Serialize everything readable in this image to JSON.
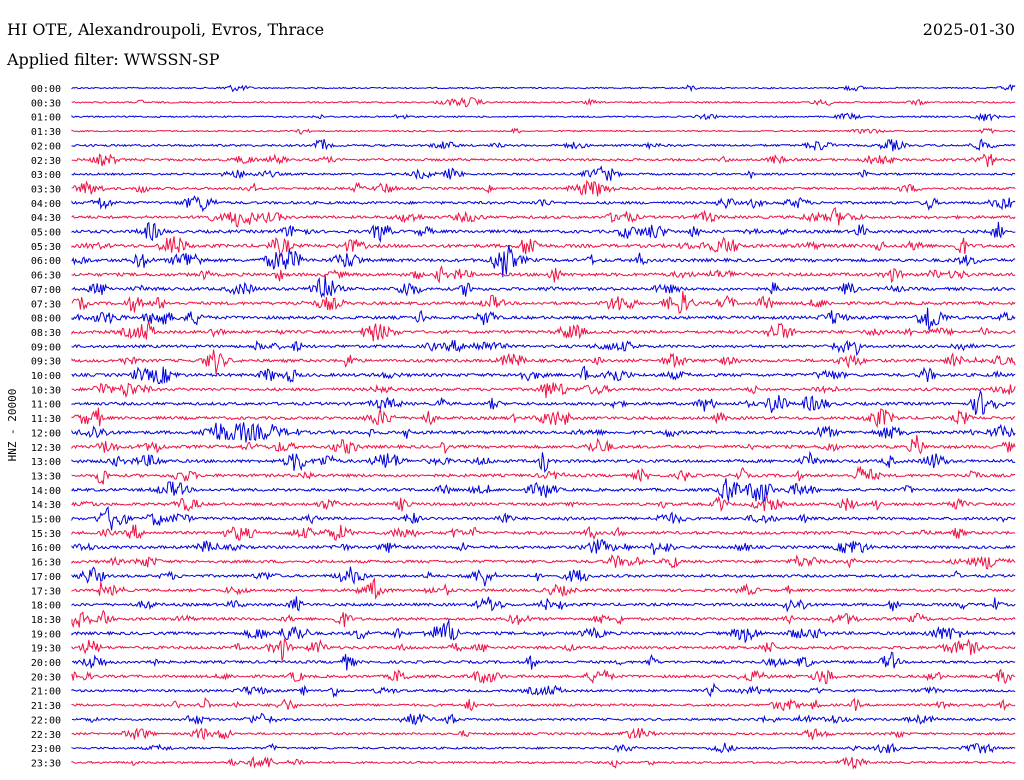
{
  "header": {
    "station": "HI OTE, Alexandroupoli, Evros, Thrace",
    "date": "2025-01-30",
    "filter": "Applied filter: WWSSN-SP"
  },
  "chart_data": {
    "type": "line",
    "title": "HI OTE, Alexandroupoli, Evros, Thrace",
    "ylabel": "HNZ - 20000",
    "y_ticks": [
      "00:00",
      "00:30",
      "01:00",
      "01:30",
      "02:00",
      "02:30",
      "03:00",
      "03:30",
      "04:00",
      "04:30",
      "05:00",
      "05:30",
      "06:00",
      "06:30",
      "07:00",
      "07:30",
      "08:00",
      "08:30",
      "09:00",
      "09:30",
      "10:00",
      "10:30",
      "11:00",
      "11:30",
      "12:00",
      "12:30",
      "13:00",
      "13:30",
      "14:00",
      "14:30",
      "15:00",
      "15:30",
      "16:00",
      "16:30",
      "17:00",
      "17:30",
      "18:00",
      "18:30",
      "19:00",
      "19:30",
      "20:00",
      "20:30",
      "21:00",
      "21:30",
      "22:00",
      "22:30",
      "23:00",
      "23:30"
    ],
    "row_colors": [
      "#0000dd",
      "#ee1144"
    ],
    "trace_activity": [
      0.2,
      0.3,
      0.25,
      0.2,
      0.5,
      0.6,
      0.45,
      0.6,
      0.7,
      0.75,
      0.8,
      0.95,
      0.9,
      0.9,
      0.85,
      0.8,
      0.85,
      0.8,
      0.75,
      0.8,
      0.85,
      0.75,
      0.8,
      0.8,
      0.9,
      0.85,
      0.85,
      0.8,
      0.8,
      0.75,
      0.75,
      0.8,
      0.75,
      0.75,
      0.7,
      0.7,
      0.75,
      0.75,
      0.8,
      0.75,
      0.7,
      0.7,
      0.6,
      0.6,
      0.55,
      0.5,
      0.45,
      0.45
    ],
    "grid": false
  }
}
